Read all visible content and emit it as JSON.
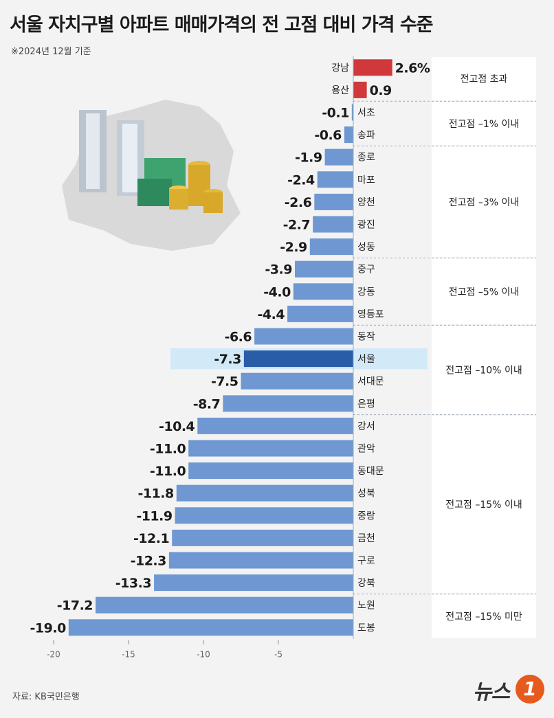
{
  "title": "서울 자치구별 아파트 매매가격의 전 고점 대비 가격 수준",
  "subtitle": "※2024년 12월 기준",
  "source": "자료: KB국민은행",
  "logo_text": "뉴스",
  "logo_badge": "1",
  "colors": {
    "positive": "#d0383b",
    "negative": "#6f98d2",
    "seoul": "#2a5da8",
    "seoul_bg": "#d2e9f7",
    "group_bg": "#ffffff"
  },
  "chart_data": {
    "type": "bar",
    "orientation": "horizontal",
    "title": "서울 자치구별 아파트 매매가격의 전 고점 대비 가격 수준",
    "unit": "%",
    "xlim": [
      -20,
      3
    ],
    "x_ticks": [
      -20,
      -15,
      -10,
      -5
    ],
    "x_tick_labels": [
      "-20",
      "-15",
      "-10",
      "-5"
    ],
    "categories": [
      "강남",
      "용산",
      "서초",
      "송파",
      "종로",
      "마포",
      "양천",
      "광진",
      "성동",
      "중구",
      "강동",
      "영등포",
      "동작",
      "서울",
      "서대문",
      "은평",
      "강서",
      "관악",
      "동대문",
      "성북",
      "중랑",
      "금천",
      "구로",
      "강북",
      "노원",
      "도봉"
    ],
    "values": [
      2.6,
      0.9,
      -0.1,
      -0.6,
      -1.9,
      -2.4,
      -2.6,
      -2.7,
      -2.9,
      -3.9,
      -4.0,
      -4.4,
      -6.6,
      -7.3,
      -7.5,
      -8.7,
      -10.4,
      -11.0,
      -11.0,
      -11.8,
      -11.9,
      -12.1,
      -12.3,
      -13.3,
      -17.2,
      -19.0
    ],
    "value_labels": [
      "2.6%",
      "0.9",
      "-0.1",
      "-0.6",
      "-1.9",
      "-2.4",
      "-2.6",
      "-2.7",
      "-2.9",
      "-3.9",
      "-4.0",
      "-4.4",
      "-6.6",
      "-7.3",
      "-7.5",
      "-8.7",
      "-10.4",
      "-11.0",
      "-11.0",
      "-11.8",
      "-11.9",
      "-12.1",
      "-12.3",
      "-13.3",
      "-17.2",
      "-19.0"
    ],
    "highlight": "서울",
    "groups": [
      {
        "label": "전고점 초과",
        "start": 0,
        "end": 1
      },
      {
        "label": "전고점 –1% 이내",
        "start": 2,
        "end": 3
      },
      {
        "label": "전고점 –3% 이내",
        "start": 4,
        "end": 8
      },
      {
        "label": "전고점 –5% 이내",
        "start": 9,
        "end": 11
      },
      {
        "label": "전고점 –10% 이내",
        "start": 12,
        "end": 15
      },
      {
        "label": "전고점 –15% 이내",
        "start": 16,
        "end": 23
      },
      {
        "label": "전고점 –15% 미만",
        "start": 24,
        "end": 25
      }
    ]
  }
}
